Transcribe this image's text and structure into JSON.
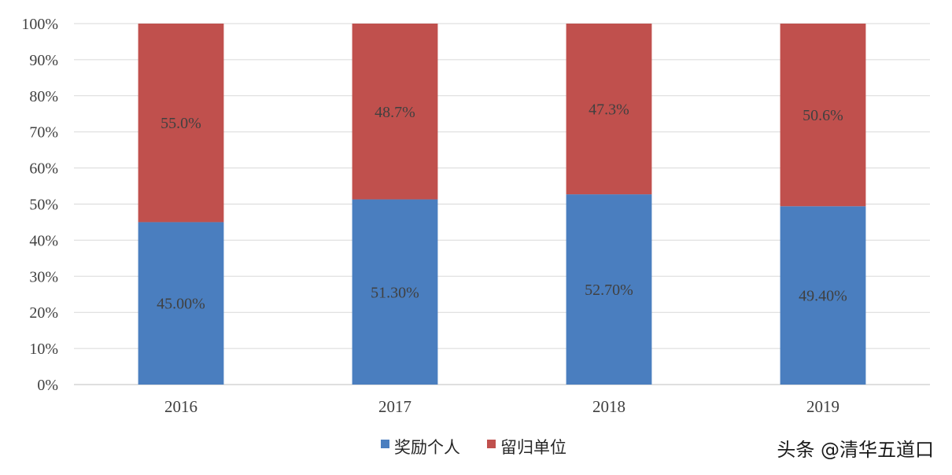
{
  "chart_data": {
    "type": "bar",
    "stacked": true,
    "categories": [
      "2016",
      "2017",
      "2018",
      "2019"
    ],
    "series": [
      {
        "name": "奖励个人",
        "color": "#4a7ebf",
        "values": [
          45.0,
          51.3,
          52.7,
          49.4
        ],
        "labels": [
          "45.00%",
          "51.30%",
          "52.70%",
          "49.40%"
        ]
      },
      {
        "name": "留归单位",
        "color": "#c0504d",
        "values": [
          55.0,
          48.7,
          47.3,
          50.6
        ],
        "labels": [
          "55.0%",
          "48.7%",
          "47.3%",
          "50.6%"
        ]
      }
    ],
    "ylim": [
      0,
      100
    ],
    "yticks": [
      "0%",
      "10%",
      "20%",
      "30%",
      "40%",
      "50%",
      "60%",
      "70%",
      "80%",
      "90%",
      "100%"
    ],
    "grid": true,
    "legend_position": "bottom",
    "title": "",
    "xlabel": "",
    "ylabel": ""
  },
  "watermark": "头条 @清华五道口"
}
